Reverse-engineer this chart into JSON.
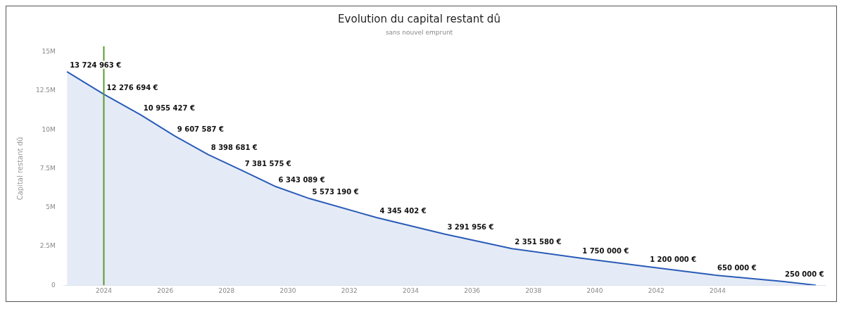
{
  "chart_data": {
    "type": "area",
    "title": "Evolution du capital restant dû",
    "subtitle": "sans nouvel emprunt",
    "ylabel": "Capital restant dû",
    "x": [
      2022.8,
      2024,
      2025.2,
      2026.3,
      2027.4,
      2028.5,
      2029.6,
      2030.7,
      2032.9,
      2035.1,
      2037.3,
      2039.5,
      2041.7,
      2043.9,
      2046.1,
      2047.2
    ],
    "series": [
      {
        "color": "#2a5cb8",
        "values": [
          13724963,
          12276694,
          10955427,
          9607587,
          8398681,
          7381575,
          6343089,
          5573190,
          4345402,
          3291956,
          2351580,
          1750000,
          1200000,
          650000,
          250000,
          0
        ],
        "value_labels": [
          "13 724 963 €",
          "12 276 694 €",
          "10 955 427 €",
          "9 607 587 €",
          "8 398 681 €",
          "7 381 575 €",
          "6 343 089 €",
          "5 573 190 €",
          "4 345 402 €",
          "3 291 956 €",
          "2 351 580 €",
          "1 750 000 €",
          "1 200 000 €",
          "650 000 €",
          "250 000 €",
          null
        ]
      }
    ],
    "xlim": [
      2022.7,
      2047.5
    ],
    "xticks": [
      2024,
      2026,
      2028,
      2030,
      2032,
      2034,
      2036,
      2038,
      2040,
      2042,
      2044
    ],
    "ylim": [
      0,
      15000000
    ],
    "yticks": [
      {
        "value": 0,
        "label": "0"
      },
      {
        "value": 2500000,
        "label": "2.5M"
      },
      {
        "value": 5000000,
        "label": "5M"
      },
      {
        "value": 7500000,
        "label": "7.5M"
      },
      {
        "value": 10000000,
        "label": "10M"
      },
      {
        "value": 12500000,
        "label": "12.5M"
      },
      {
        "value": 15000000,
        "label": "15M"
      }
    ],
    "ref_lines": [
      {
        "axis": "x",
        "value": 2024,
        "color": "#5a9a2a"
      }
    ],
    "grid": false,
    "legend": false,
    "marker": "none"
  }
}
